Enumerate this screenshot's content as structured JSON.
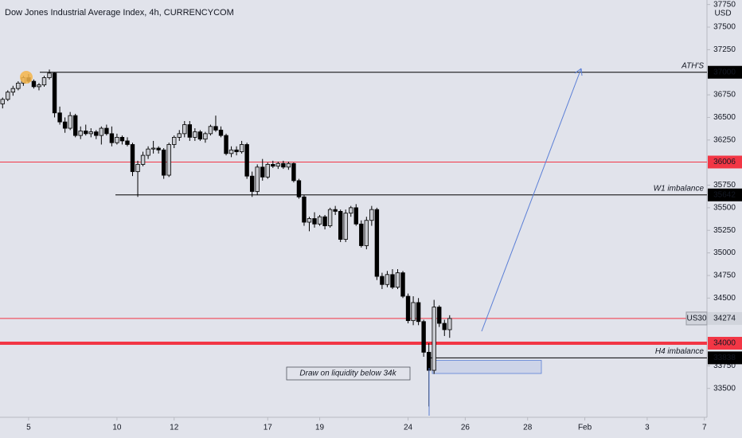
{
  "chart_data": {
    "type": "candlestick",
    "title": "Dow Jones Industrial Average Index, 4h, CURRENCYCOM",
    "currency": "USD",
    "xlim": [
      -0.5,
      135.5
    ],
    "xticks": [
      {
        "value": 5,
        "label": "5"
      },
      {
        "value": 22,
        "label": "10"
      },
      {
        "value": 33,
        "label": "12"
      },
      {
        "value": 51,
        "label": "17"
      },
      {
        "value": 61,
        "label": "19"
      },
      {
        "value": 78,
        "label": "24"
      },
      {
        "value": 89,
        "label": "26"
      },
      {
        "value": 101,
        "label": "28"
      },
      {
        "value": 112,
        "label": "Feb"
      },
      {
        "value": 124,
        "label": "3"
      },
      {
        "value": 135,
        "label": "7"
      }
    ],
    "ylim": [
      33180,
      37800
    ],
    "yticks": [
      33500,
      33750,
      34500,
      34750,
      35000,
      35250,
      35500,
      35750,
      36250,
      36500,
      36750,
      37250,
      37500,
      37750
    ],
    "up_color": "#c9cbd1",
    "down_color": "#000000",
    "open": [
      36650,
      36700,
      36780,
      36820,
      36880,
      36940,
      36900,
      36840,
      36860,
      36940,
      36990,
      36550,
      36450,
      36380,
      36520,
      36300,
      36350,
      36320,
      36340,
      36300,
      36380,
      36320,
      36220,
      36280,
      36240,
      36200,
      35900,
      35980,
      36080,
      36150,
      36160,
      36140,
      35860,
      36200,
      36280,
      36320,
      36420,
      36280,
      36340,
      36260,
      36320,
      36400,
      36360,
      36300,
      36100,
      36140,
      36120,
      36200,
      35850,
      35680,
      35950,
      35840,
      35980,
      35960,
      35990,
      35950,
      35990,
      35800,
      35620,
      35340,
      35380,
      35320,
      35400,
      35300,
      35480,
      35460,
      35150,
      35440,
      35500,
      35320,
      35080,
      35360,
      35480,
      34740,
      34650,
      34760,
      34620,
      34780,
      34520,
      34250,
      34450,
      34240,
      33900,
      33700,
      34400,
      34220,
      34150
    ],
    "high": [
      36720,
      36800,
      36850,
      36900,
      36960,
      36980,
      36920,
      36880,
      36960,
      37030,
      37000,
      36620,
      36500,
      36560,
      36540,
      36400,
      36420,
      36380,
      36360,
      36400,
      36420,
      36400,
      36320,
      36300,
      36280,
      36220,
      36020,
      36120,
      36180,
      36240,
      36180,
      36160,
      36220,
      36300,
      36360,
      36460,
      36460,
      36380,
      36360,
      36340,
      36420,
      36520,
      36400,
      36320,
      36180,
      36180,
      36240,
      36220,
      35900,
      35980,
      36040,
      36000,
      36020,
      36010,
      36020,
      36010,
      36000,
      35820,
      35640,
      35400,
      35450,
      35420,
      35420,
      35500,
      35520,
      35480,
      35480,
      35520,
      35540,
      35360,
      35400,
      35520,
      35500,
      34780,
      34800,
      34820,
      34820,
      34800,
      34550,
      34520,
      34500,
      34260,
      34000,
      34480,
      34420,
      34260,
      34310
    ],
    "low": [
      36600,
      36680,
      36740,
      36800,
      36850,
      36880,
      36820,
      36800,
      36840,
      36920,
      36500,
      36420,
      36330,
      36360,
      36280,
      36260,
      36300,
      36280,
      36260,
      36200,
      36300,
      36180,
      36200,
      36200,
      36180,
      35850,
      35620,
      35960,
      36040,
      36100,
      36100,
      35820,
      35840,
      36160,
      36240,
      36280,
      36240,
      36240,
      36240,
      36220,
      36300,
      36340,
      36280,
      36080,
      36060,
      36080,
      36100,
      35820,
      35620,
      35640,
      35800,
      35820,
      35940,
      35930,
      35930,
      35920,
      35780,
      35600,
      35300,
      35240,
      35280,
      35300,
      35260,
      35280,
      35420,
      35120,
      35120,
      35400,
      35300,
      35060,
      35040,
      35300,
      34700,
      34600,
      34620,
      34600,
      34600,
      34500,
      34220,
      34200,
      34200,
      33850,
      33300,
      33660,
      34180,
      34080,
      34060
    ],
    "close": [
      36700,
      36780,
      36820,
      36880,
      36940,
      36900,
      36840,
      36860,
      36940,
      36990,
      36550,
      36450,
      36380,
      36520,
      36300,
      36350,
      36320,
      36340,
      36300,
      36380,
      36320,
      36220,
      36280,
      36240,
      36200,
      35900,
      35980,
      36080,
      36150,
      36160,
      36140,
      35860,
      36200,
      36280,
      36320,
      36420,
      36280,
      36340,
      36260,
      36320,
      36400,
      36360,
      36300,
      36100,
      36140,
      36120,
      36200,
      35850,
      35680,
      35950,
      35840,
      35980,
      35960,
      35990,
      35950,
      35990,
      35800,
      35620,
      35340,
      35380,
      35320,
      35400,
      35300,
      35480,
      35460,
      35150,
      35440,
      35500,
      35320,
      35080,
      35360,
      35480,
      34740,
      34650,
      34760,
      34620,
      34780,
      34520,
      34250,
      34450,
      34240,
      33900,
      33700,
      34400,
      34220,
      34150,
      34274
    ],
    "levels": [
      {
        "value": 37000,
        "name": "ATH'S",
        "color": "#000000"
      },
      {
        "value": 36006,
        "color": "#f23645"
      },
      {
        "value": 35642,
        "name": "W1 imbalance",
        "color": "#000000"
      },
      {
        "value": 34274,
        "name": "US30",
        "color": "#f23645"
      },
      {
        "value": 34000,
        "color": "#f23645"
      },
      {
        "value": 33838,
        "name": "H4 imbalance",
        "color": "#000000"
      }
    ],
    "zone": {
      "low": 33665,
      "high": 33810,
      "color": "#5b7fd6"
    },
    "annotation": "Draw on liquidity below 34k"
  }
}
